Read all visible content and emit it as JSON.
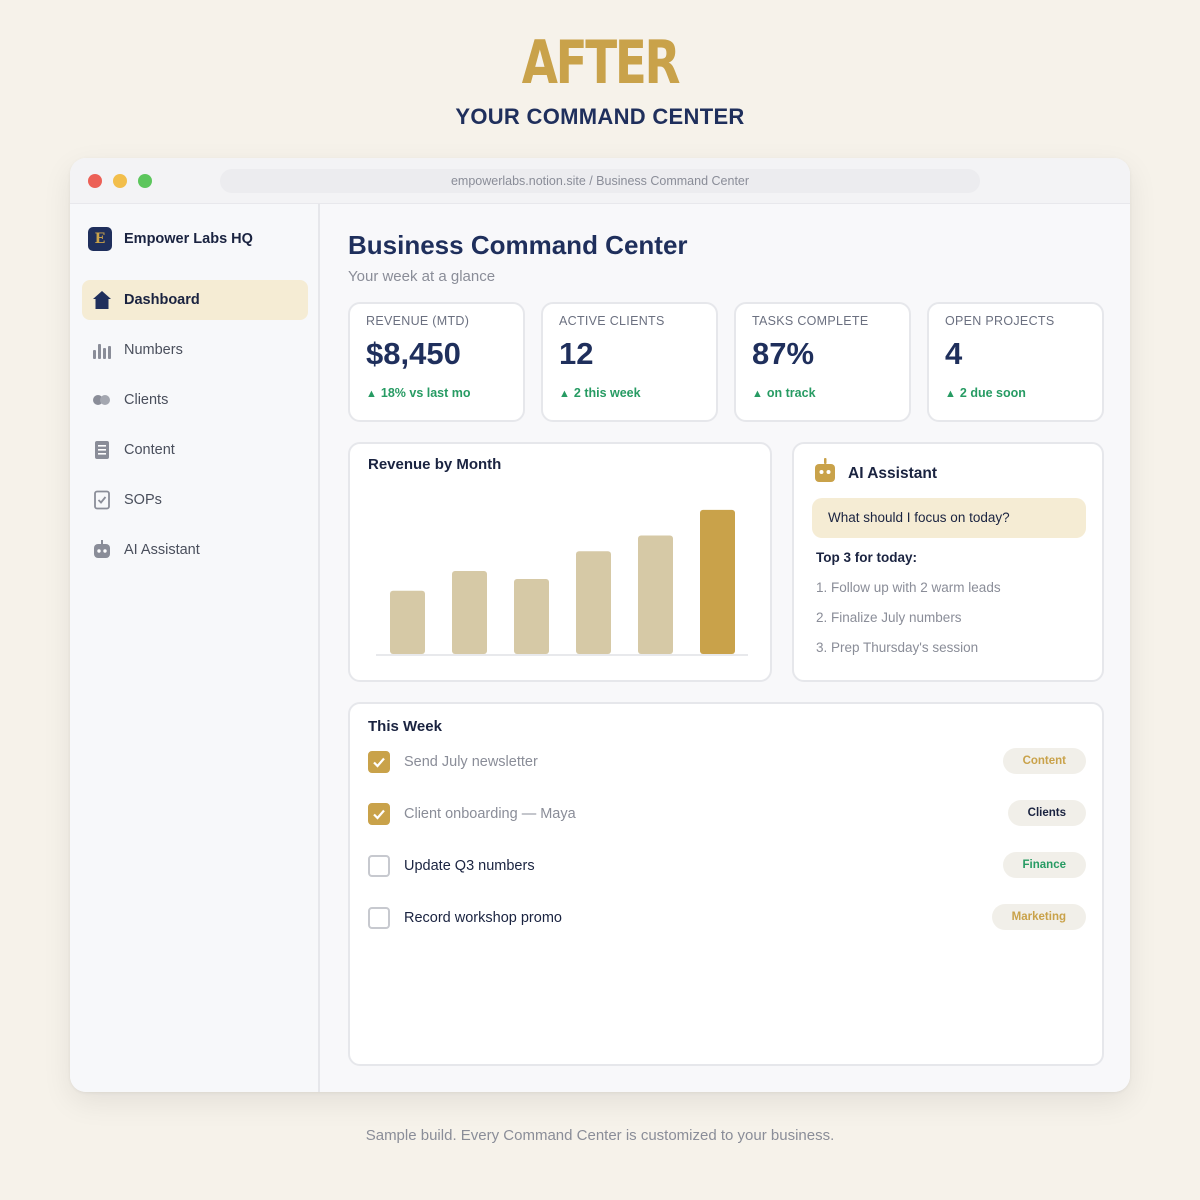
{
  "hero": {
    "title": "AFTER",
    "subtitle": "YOUR COMMAND CENTER"
  },
  "browser": {
    "url": "empowerlabs.notion.site  /  Business Command Center"
  },
  "sidebar": {
    "brand": {
      "logo_letter": "E",
      "name": "Empower Labs HQ"
    },
    "items": [
      {
        "label": "Dashboard",
        "icon": "home-icon",
        "active": true
      },
      {
        "label": "Numbers",
        "icon": "bar-chart-icon",
        "active": false
      },
      {
        "label": "Clients",
        "icon": "people-icon",
        "active": false
      },
      {
        "label": "Content",
        "icon": "document-icon",
        "active": false
      },
      {
        "label": "SOPs",
        "icon": "checklist-icon",
        "active": false
      },
      {
        "label": "AI Assistant",
        "icon": "robot-icon",
        "active": false
      }
    ]
  },
  "main": {
    "title": "Business Command Center",
    "subtitle": "Your week at a glance",
    "kpis": [
      {
        "label": "REVENUE (MTD)",
        "value": "$8,450",
        "delta": "18% vs last mo"
      },
      {
        "label": "ACTIVE CLIENTS",
        "value": "12",
        "delta": "2 this week"
      },
      {
        "label": "TASKS COMPLETE",
        "value": "87%",
        "delta": "on track"
      },
      {
        "label": "OPEN PROJECTS",
        "value": "4",
        "delta": "2 due soon"
      }
    ],
    "revenue_card": {
      "title": "Revenue by Month"
    },
    "ai_card": {
      "title": "AI Assistant",
      "question": "What should I focus on today?",
      "top_heading": "Top 3 for today:",
      "items": [
        "1. Follow up with 2 warm leads",
        "2. Finalize July numbers",
        "3. Prep Thursday's session"
      ]
    },
    "week": {
      "title": "This Week",
      "tasks": [
        {
          "text": "Send July newsletter",
          "done": true,
          "tag": "Content",
          "tag_color": "#c9a24a"
        },
        {
          "text": "Client onboarding — Maya",
          "done": true,
          "tag": "Clients",
          "tag_color": "#1a2340"
        },
        {
          "text": "Update Q3 numbers",
          "done": false,
          "tag": "Finance",
          "tag_color": "#279b63"
        },
        {
          "text": "Record workshop promo",
          "done": false,
          "tag": "Marketing",
          "tag_color": "#c9a24a"
        }
      ]
    }
  },
  "footer": {
    "note": "Sample build. Every Command Center is customized to your business."
  },
  "colors": {
    "accent_gold": "#c9a24a",
    "navy": "#1f2f5c",
    "positive_green": "#279b63",
    "bar_muted": "#d6c9a6",
    "background": "#f6f2ea"
  },
  "chart_data": {
    "type": "bar",
    "title": "Revenue by Month",
    "categories": [
      "",
      "",
      "",
      "",
      "",
      ""
    ],
    "values": [
      3.2,
      4.2,
      3.8,
      5.2,
      6.0,
      7.3
    ],
    "highlight_index": 5,
    "xlabel": "",
    "ylabel": "",
    "ylim": [
      0,
      8
    ],
    "grid": false,
    "legend": "none"
  }
}
